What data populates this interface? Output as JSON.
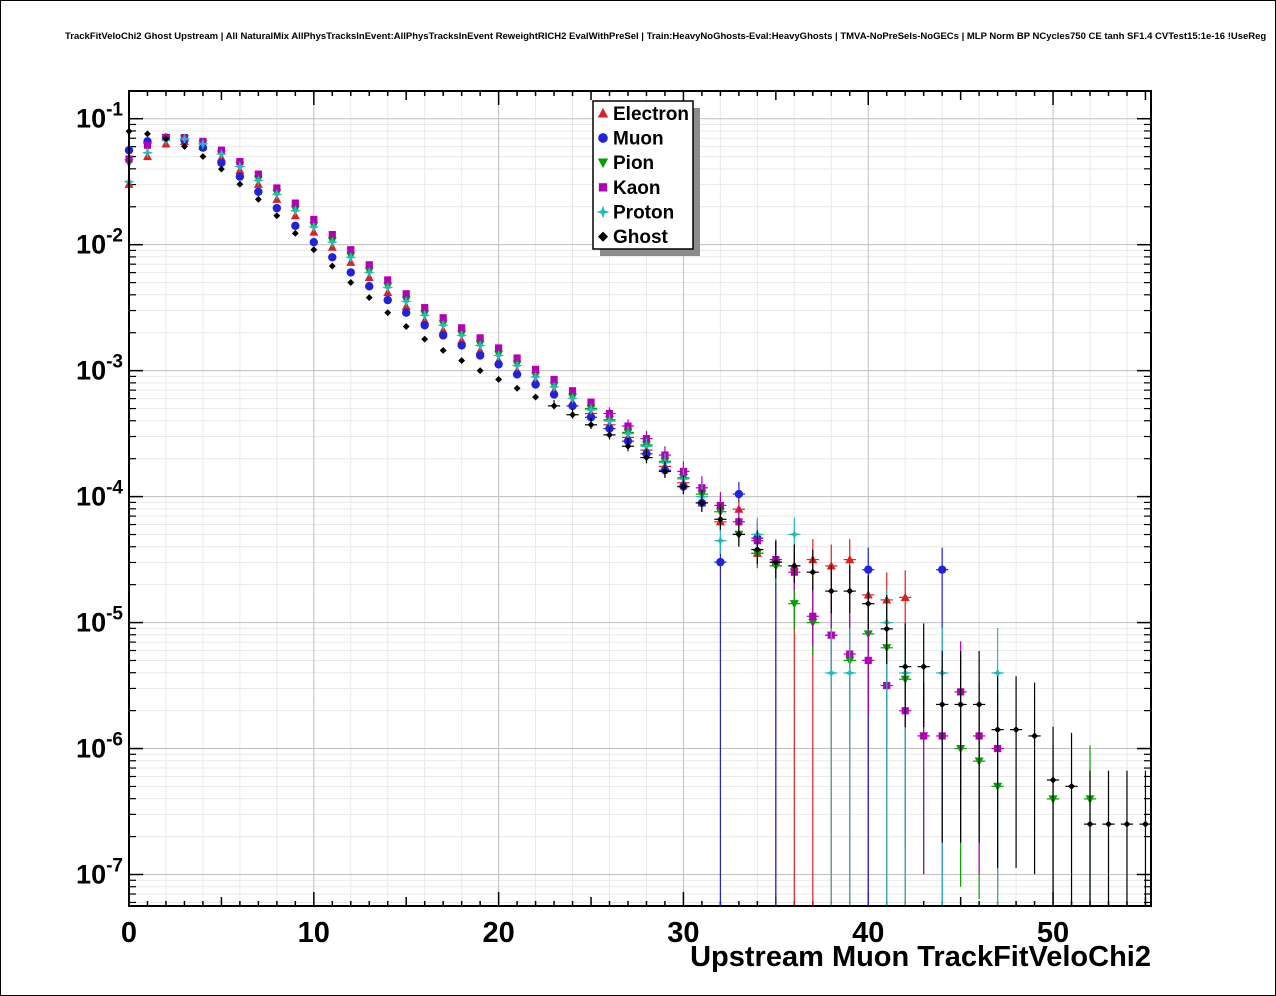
{
  "header": {
    "title": "TrackFitVeloChi2 Ghost Upstream | All NaturalMix AllPhysTracksInEvent:AllPhysTracksInEvent ReweightRICH2 EvalWithPreSel | Train:HeavyNoGhosts-Eval:HeavyGhosts | TMVA-NoPreSels-NoGECs | MLP Norm BP NCycles750 CE tanh SF1.4 CVTest15:1e-16 !UseReg"
  },
  "chart_data": {
    "type": "scatter",
    "title": "TrackFitVeloChi2 Ghost Upstream",
    "xlabel": "Upstream Muon TrackFitVeloChi2",
    "ylabel": "",
    "y_scale": "log10",
    "xlim": [
      0,
      55.3
    ],
    "ylim_log": [
      -7.25,
      -0.78
    ],
    "x_tick_labels": [
      0,
      10,
      20,
      30,
      40,
      50
    ],
    "y_tick_exponents": [
      -1,
      -2,
      -3,
      -4,
      -5,
      -6,
      -7
    ],
    "grid": true,
    "legend_position": "top-center",
    "x_start": 0,
    "x_step": 1,
    "series": [
      {
        "name": "Electron",
        "color": "#e02020",
        "marker": "triangle-up",
        "logy": [
          -1.52,
          -1.3,
          -1.2,
          -1.18,
          -1.22,
          -1.31,
          -1.41,
          -1.52,
          -1.64,
          -1.77,
          -1.9,
          -2.02,
          -2.14,
          -2.26,
          -2.38,
          -2.49,
          -2.6,
          -2.68,
          -2.76,
          -2.84,
          -2.92,
          -3.0,
          -3.08,
          -3.16,
          -3.25,
          -3.34,
          -3.43,
          -3.53,
          -3.63,
          -3.76,
          -3.89,
          -4.05,
          -4.2,
          -4.1,
          -4.45,
          -4.52,
          -4.55,
          -4.5,
          -4.55,
          -4.5,
          -4.78,
          -4.82,
          -4.8,
          null,
          null,
          null,
          null,
          null,
          null,
          null,
          null,
          null,
          null,
          null,
          null,
          null
        ]
      },
      {
        "name": "Muon",
        "color": "#2222dd",
        "marker": "circle",
        "logy": [
          -1.25,
          -1.18,
          -1.15,
          -1.17,
          -1.23,
          -1.35,
          -1.46,
          -1.58,
          -1.71,
          -1.85,
          -1.98,
          -2.1,
          -2.22,
          -2.33,
          -2.44,
          -2.54,
          -2.64,
          -2.72,
          -2.8,
          -2.88,
          -2.95,
          -3.03,
          -3.11,
          -3.19,
          -3.28,
          -3.37,
          -3.46,
          -3.56,
          -3.66,
          -3.79,
          -3.92,
          -4.05,
          -4.52,
          -3.98,
          -4.33,
          -4.52,
          null,
          null,
          null,
          null,
          -4.58,
          null,
          null,
          null,
          -4.58,
          null,
          null,
          null,
          null,
          null,
          null,
          null,
          null,
          null,
          null,
          null
        ]
      },
      {
        "name": "Pion",
        "color": "#00a000",
        "marker": "triangle-down",
        "logy": [
          -1.35,
          -1.22,
          -1.15,
          -1.16,
          -1.2,
          -1.28,
          -1.37,
          -1.48,
          -1.59,
          -1.72,
          -1.85,
          -1.97,
          -2.09,
          -2.21,
          -2.33,
          -2.44,
          -2.55,
          -2.63,
          -2.71,
          -2.79,
          -2.87,
          -2.95,
          -3.04,
          -3.12,
          -3.21,
          -3.3,
          -3.39,
          -3.49,
          -3.59,
          -3.72,
          -3.85,
          -3.98,
          -4.12,
          -4.3,
          -4.45,
          -4.55,
          -4.85,
          -5.0,
          -5.1,
          -5.3,
          -5.09,
          -5.2,
          -5.45,
          -5.9,
          null,
          -6.0,
          -6.1,
          -6.3,
          null,
          null,
          -6.4,
          null,
          -6.4,
          null,
          null,
          null
        ]
      },
      {
        "name": "Kaon",
        "color": "#b400b4",
        "marker": "square",
        "logy": [
          -1.32,
          -1.21,
          -1.15,
          -1.15,
          -1.18,
          -1.25,
          -1.34,
          -1.44,
          -1.55,
          -1.67,
          -1.8,
          -1.92,
          -2.04,
          -2.16,
          -2.28,
          -2.39,
          -2.5,
          -2.58,
          -2.66,
          -2.74,
          -2.82,
          -2.9,
          -2.99,
          -3.07,
          -3.16,
          -3.25,
          -3.34,
          -3.44,
          -3.54,
          -3.67,
          -3.8,
          -3.93,
          -4.07,
          -4.2,
          -4.35,
          -4.5,
          -4.6,
          -4.95,
          -5.1,
          -5.25,
          -5.3,
          -5.5,
          -5.7,
          -5.9,
          -5.9,
          -5.55,
          -5.9,
          -6.0,
          null,
          null,
          null,
          null,
          null,
          null,
          null,
          null
        ]
      },
      {
        "name": "Proton",
        "color": "#22bbbb",
        "marker": "star",
        "logy": [
          -1.5,
          -1.27,
          -1.17,
          -1.16,
          -1.2,
          -1.28,
          -1.38,
          -1.49,
          -1.6,
          -1.73,
          -1.86,
          -1.98,
          -2.1,
          -2.22,
          -2.34,
          -2.45,
          -2.56,
          -2.64,
          -2.72,
          -2.8,
          -2.88,
          -2.96,
          -3.05,
          -3.13,
          -3.22,
          -3.31,
          -3.4,
          -3.5,
          -3.6,
          -3.73,
          -3.86,
          -4.0,
          -4.35,
          null,
          -4.3,
          null,
          -4.3,
          null,
          -5.4,
          -5.4,
          null,
          -5.0,
          -5.4,
          null,
          -5.4,
          null,
          null,
          -5.4,
          null,
          null,
          null,
          null,
          null,
          null,
          null,
          null
        ]
      },
      {
        "name": "Ghost",
        "color": "#000000",
        "marker": "diamond",
        "logy": [
          -1.1,
          -1.12,
          -1.16,
          -1.22,
          -1.3,
          -1.4,
          -1.52,
          -1.64,
          -1.77,
          -1.91,
          -2.04,
          -2.17,
          -2.3,
          -2.42,
          -2.54,
          -2.65,
          -2.75,
          -2.84,
          -2.92,
          -3.0,
          -3.07,
          -3.14,
          -3.21,
          -3.28,
          -3.35,
          -3.43,
          -3.51,
          -3.6,
          -3.69,
          -3.8,
          -3.92,
          -4.05,
          -4.18,
          -4.3,
          -4.42,
          -4.52,
          -4.55,
          -4.6,
          -4.75,
          -4.75,
          -4.85,
          -5.05,
          -5.35,
          -5.35,
          -5.65,
          -5.65,
          -5.65,
          -5.85,
          -5.85,
          -5.9,
          -6.25,
          -6.3,
          -6.6,
          -6.6,
          -6.6,
          -6.6
        ]
      }
    ]
  }
}
